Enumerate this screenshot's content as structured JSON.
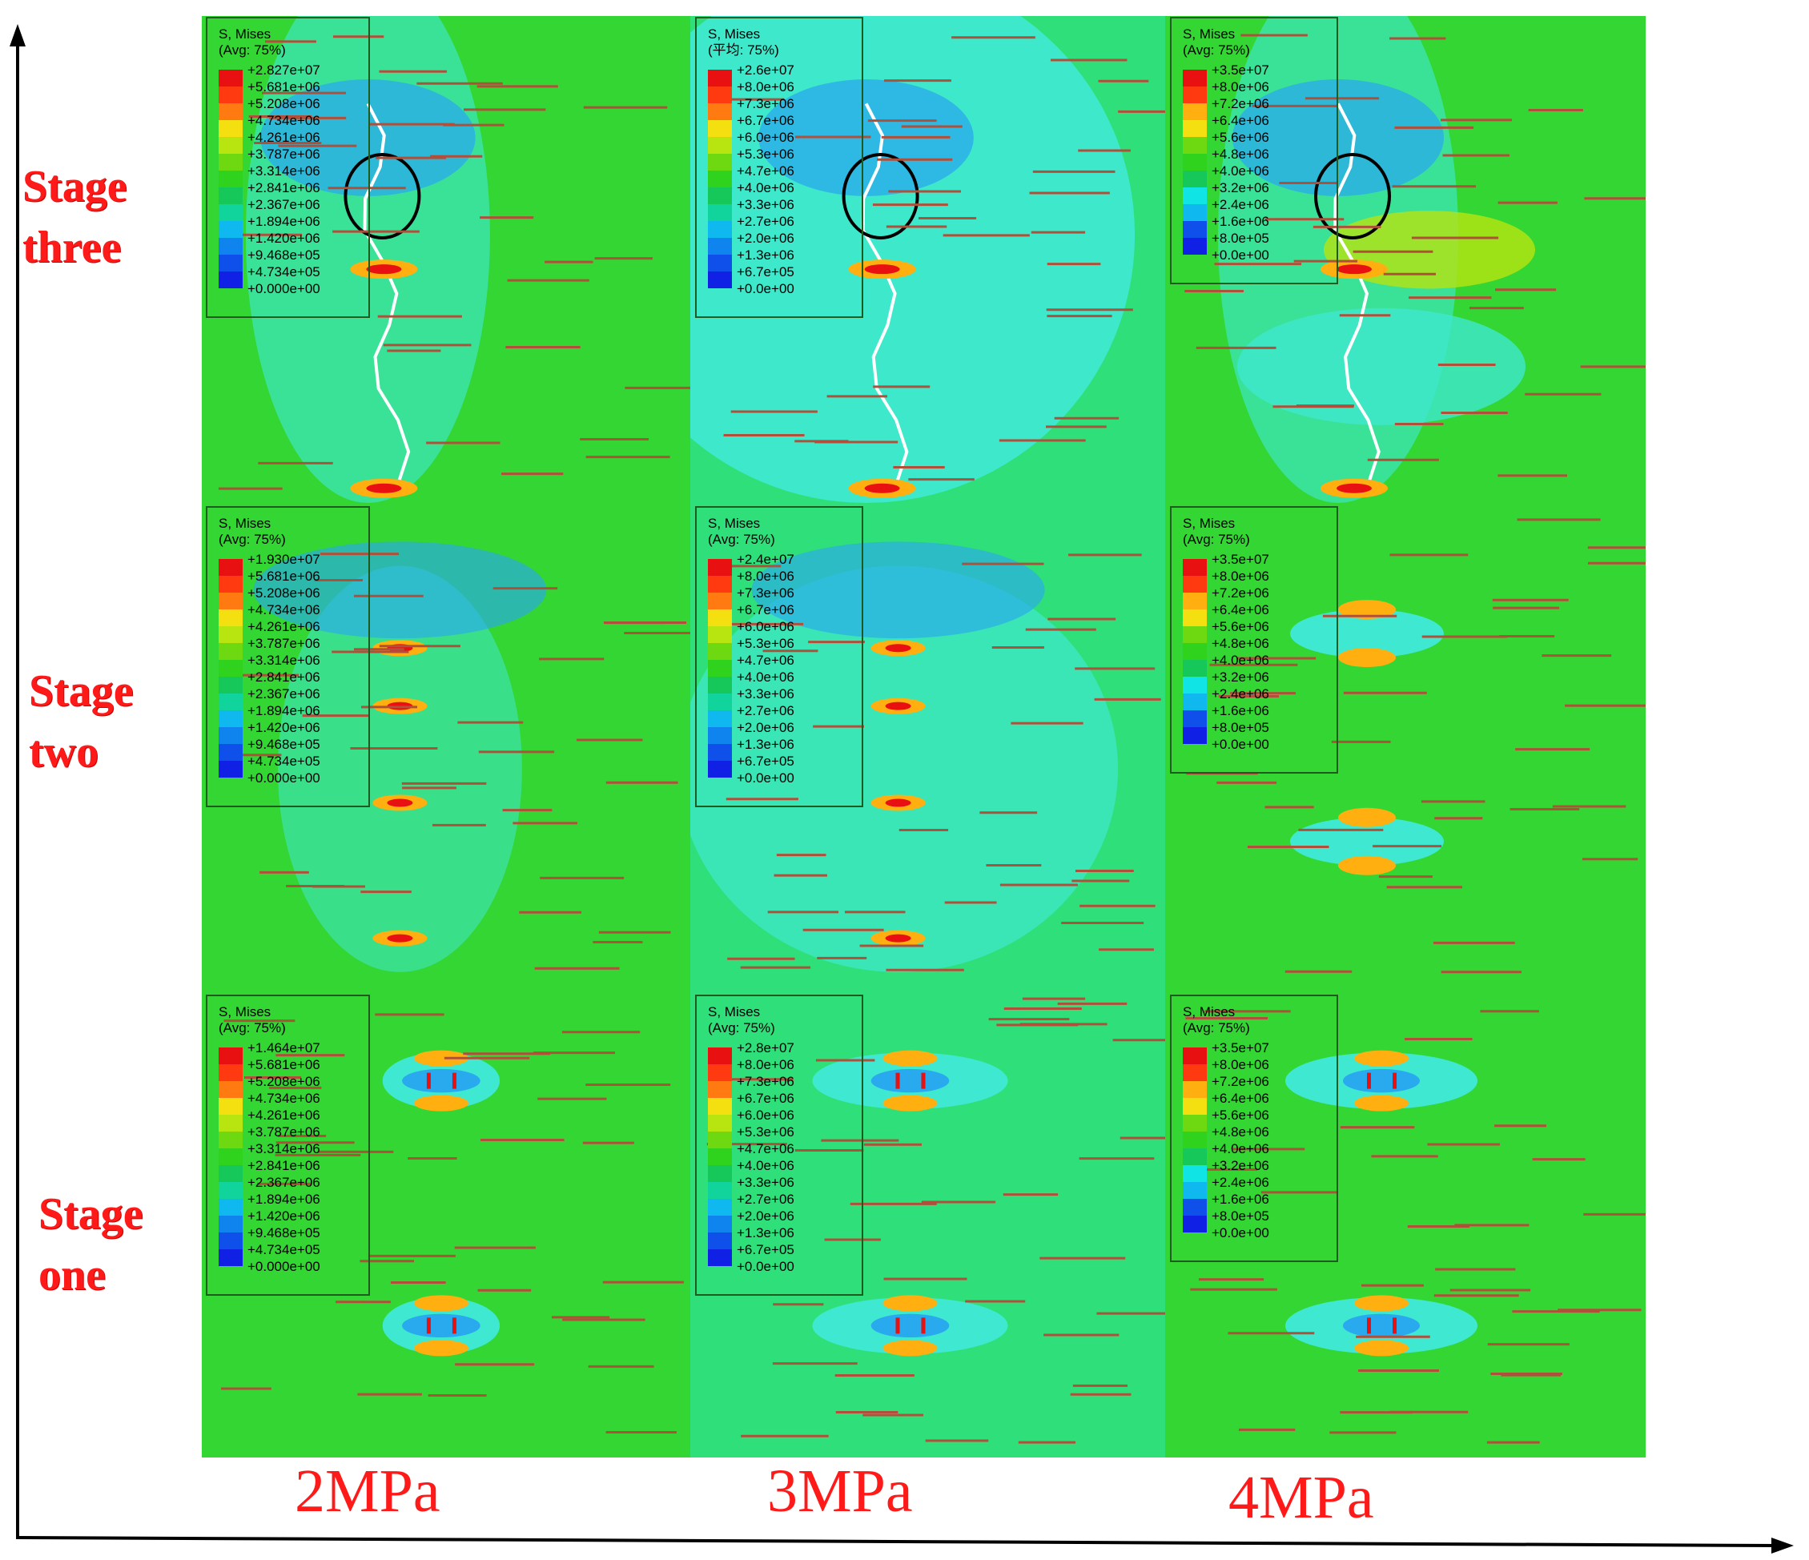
{
  "figure": {
    "row_labels": [
      "Stage\nthree",
      "Stage\ntwo",
      "Stage\none"
    ],
    "column_labels": [
      "2MPa",
      "3MPa",
      "4MPa"
    ],
    "colors": {
      "label_red": "#ff1a1a",
      "background_green": "#33d633",
      "crack_line": "#b0503a",
      "highlight_circle": "#000000"
    },
    "colormap": [
      "#e81010",
      "#ff3a10",
      "#ff7a10",
      "#ffb010",
      "#f4e010",
      "#b8e410",
      "#6ed810",
      "#2fd21c",
      "#16c85a",
      "#10d49c",
      "#10e4e4",
      "#10b8f0",
      "#1084ee",
      "#1050ea",
      "#1020e4"
    ],
    "panels": [
      {
        "id": "2mpa-stage-three",
        "legend": {
          "title": "S, Mises",
          "avg": "(Avg: 75%)",
          "values": [
            "+2.827e+07",
            "+5.681e+06",
            "+5.208e+06",
            "+4.734e+06",
            "+4.261e+06",
            "+3.787e+06",
            "+3.314e+06",
            "+2.841e+06",
            "+2.367e+06",
            "+1.894e+06",
            "+1.420e+06",
            "+9.468e+05",
            "+4.734e+05",
            "+0.000e+00"
          ]
        }
      },
      {
        "id": "3mpa-stage-three",
        "legend": {
          "title": "S, Mises",
          "avg": "(平均: 75%)",
          "values": [
            "+2.6e+07",
            "+8.0e+06",
            "+7.3e+06",
            "+6.7e+06",
            "+6.0e+06",
            "+5.3e+06",
            "+4.7e+06",
            "+4.0e+06",
            "+3.3e+06",
            "+2.7e+06",
            "+2.0e+06",
            "+1.3e+06",
            "+6.7e+05",
            "+0.0e+00"
          ]
        }
      },
      {
        "id": "4mpa-stage-three",
        "legend": {
          "title": "S, Mises",
          "avg": "(Avg: 75%)",
          "values": [
            "+3.5e+07",
            "+8.0e+06",
            "+7.2e+06",
            "+6.4e+06",
            "+5.6e+06",
            "+4.8e+06",
            "+4.0e+06",
            "+3.2e+06",
            "+2.4e+06",
            "+1.6e+06",
            "+8.0e+05",
            "+0.0e+00"
          ]
        }
      },
      {
        "id": "2mpa-stage-two",
        "legend": {
          "title": "S, Mises",
          "avg": "(Avg: 75%)",
          "values": [
            "+1.930e+07",
            "+5.681e+06",
            "+5.208e+06",
            "+4.734e+06",
            "+4.261e+06",
            "+3.787e+06",
            "+3.314e+06",
            "+2.841e+06",
            "+2.367e+06",
            "+1.894e+06",
            "+1.420e+06",
            "+9.468e+05",
            "+4.734e+05",
            "+0.000e+00"
          ]
        }
      },
      {
        "id": "3mpa-stage-two",
        "legend": {
          "title": "S, Mises",
          "avg": "(Avg: 75%)",
          "values": [
            "+2.4e+07",
            "+8.0e+06",
            "+7.3e+06",
            "+6.7e+06",
            "+6.0e+06",
            "+5.3e+06",
            "+4.7e+06",
            "+4.0e+06",
            "+3.3e+06",
            "+2.7e+06",
            "+2.0e+06",
            "+1.3e+06",
            "+6.7e+05",
            "+0.0e+00"
          ]
        }
      },
      {
        "id": "4mpa-stage-two",
        "legend": {
          "title": "S, Mises",
          "avg": "(Avg: 75%)",
          "values": [
            "+3.5e+07",
            "+8.0e+06",
            "+7.2e+06",
            "+6.4e+06",
            "+5.6e+06",
            "+4.8e+06",
            "+4.0e+06",
            "+3.2e+06",
            "+2.4e+06",
            "+1.6e+06",
            "+8.0e+05",
            "+0.0e+00"
          ]
        }
      },
      {
        "id": "2mpa-stage-one",
        "legend": {
          "title": "S, Mises",
          "avg": "(Avg: 75%)",
          "values": [
            "+1.464e+07",
            "+5.681e+06",
            "+5.208e+06",
            "+4.734e+06",
            "+4.261e+06",
            "+3.787e+06",
            "+3.314e+06",
            "+2.841e+06",
            "+2.367e+06",
            "+1.894e+06",
            "+1.420e+06",
            "+9.468e+05",
            "+4.734e+05",
            "+0.000e+00"
          ]
        }
      },
      {
        "id": "3mpa-stage-one",
        "legend": {
          "title": "S, Mises",
          "avg": "(Avg: 75%)",
          "values": [
            "+2.8e+07",
            "+8.0e+06",
            "+7.3e+06",
            "+6.7e+06",
            "+6.0e+06",
            "+5.3e+06",
            "+4.7e+06",
            "+4.0e+06",
            "+3.3e+06",
            "+2.7e+06",
            "+2.0e+06",
            "+1.3e+06",
            "+6.7e+05",
            "+0.0e+00"
          ]
        }
      },
      {
        "id": "4mpa-stage-one",
        "legend": {
          "title": "S, Mises",
          "avg": "(Avg: 75%)",
          "values": [
            "+3.5e+07",
            "+8.0e+06",
            "+7.2e+06",
            "+6.4e+06",
            "+5.6e+06",
            "+4.8e+06",
            "+4.0e+06",
            "+3.2e+06",
            "+2.4e+06",
            "+1.6e+06",
            "+8.0e+05",
            "+0.0e+00"
          ]
        }
      }
    ]
  }
}
